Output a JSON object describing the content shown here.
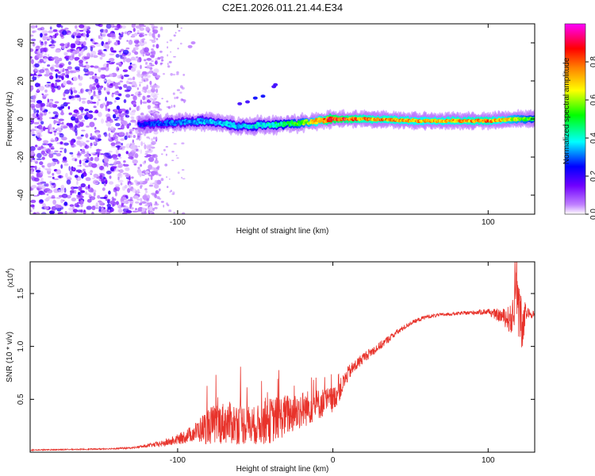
{
  "chart_data": [
    {
      "id": "spectrogram",
      "type": "heatmap",
      "title": "C2E1.2026.011.21.44.E34",
      "xlabel": "Height of straight line (km)",
      "ylabel": "Frequency (Hz)",
      "xlim": [
        -195,
        130
      ],
      "ylim": [
        -50,
        50
      ],
      "xticks": [
        -100,
        100
      ],
      "xtick_labels": [
        "-100",
        "100"
      ],
      "yticks": [
        -40,
        -20,
        0,
        20,
        40
      ],
      "ytick_labels": [
        "-40",
        "-20",
        "0",
        "20",
        "40"
      ],
      "colorbar": {
        "label": "Normalized spectral amplitude",
        "range": [
          0,
          1
        ],
        "ticks": [
          0.0,
          0.2,
          0.4,
          0.6,
          0.8
        ],
        "tick_labels": [
          "0.0",
          "0.2",
          "0.4",
          "0.6",
          "0.8"
        ],
        "colors": [
          "#ffffff",
          "#8000ff",
          "#0000ff",
          "#00ffff",
          "#00ff00",
          "#ffff00",
          "#ff8000",
          "#ff0000",
          "#ff00ff"
        ]
      },
      "noise_region_x": [
        -195,
        -120
      ],
      "signal_band": {
        "x": [
          -125,
          -100,
          -80,
          -60,
          -40,
          -20,
          0,
          20,
          60,
          100,
          120,
          130
        ],
        "center_freq": [
          -3,
          -2,
          -1,
          -4,
          -3,
          -2,
          0,
          0,
          -1,
          -1,
          0,
          0
        ],
        "strength": [
          0.25,
          0.3,
          0.35,
          0.35,
          0.4,
          0.55,
          0.85,
          0.75,
          0.7,
          0.75,
          0.6,
          0.5
        ]
      }
    },
    {
      "id": "snr",
      "type": "line",
      "xlabel": "Height of straight line (km)",
      "ylabel": "SNR (10 * v/v)",
      "multiplier_label": "(x10",
      "multiplier_exp": "4",
      "multiplier_close": ")",
      "xlim": [
        -195,
        130
      ],
      "ylim": [
        0,
        1.8
      ],
      "xticks": [
        -100,
        0,
        100
      ],
      "xtick_labels": [
        "-100",
        "0",
        "100"
      ],
      "yticks": [
        0.5,
        1.0,
        1.5
      ],
      "ytick_labels": [
        "0.5",
        "1.0",
        "1.5"
      ],
      "color": "#e8332b",
      "series": [
        {
          "name": "SNR",
          "x": [
            -195,
            -150,
            -130,
            -120,
            -110,
            -100,
            -90,
            -80,
            -70,
            -60,
            -50,
            -40,
            -30,
            -20,
            -10,
            0,
            5,
            10,
            20,
            30,
            40,
            50,
            60,
            70,
            80,
            90,
            100,
            105,
            110,
            115,
            118,
            120,
            122,
            125,
            130
          ],
          "y": [
            0.02,
            0.03,
            0.04,
            0.06,
            0.08,
            0.12,
            0.18,
            0.25,
            0.28,
            0.27,
            0.25,
            0.3,
            0.35,
            0.4,
            0.45,
            0.5,
            0.6,
            0.75,
            0.9,
            1.0,
            1.12,
            1.22,
            1.28,
            1.3,
            1.31,
            1.32,
            1.33,
            1.3,
            1.28,
            1.25,
            1.3,
            1.4,
            1.2,
            1.32,
            1.3
          ],
          "noise": [
            0.005,
            0.006,
            0.008,
            0.015,
            0.03,
            0.05,
            0.08,
            0.18,
            0.2,
            0.2,
            0.18,
            0.22,
            0.2,
            0.18,
            0.15,
            0.12,
            0.1,
            0.07,
            0.05,
            0.04,
            0.03,
            0.02,
            0.02,
            0.015,
            0.015,
            0.02,
            0.03,
            0.05,
            0.08,
            0.15,
            0.25,
            0.35,
            0.3,
            0.05,
            0.03
          ]
        }
      ]
    }
  ]
}
